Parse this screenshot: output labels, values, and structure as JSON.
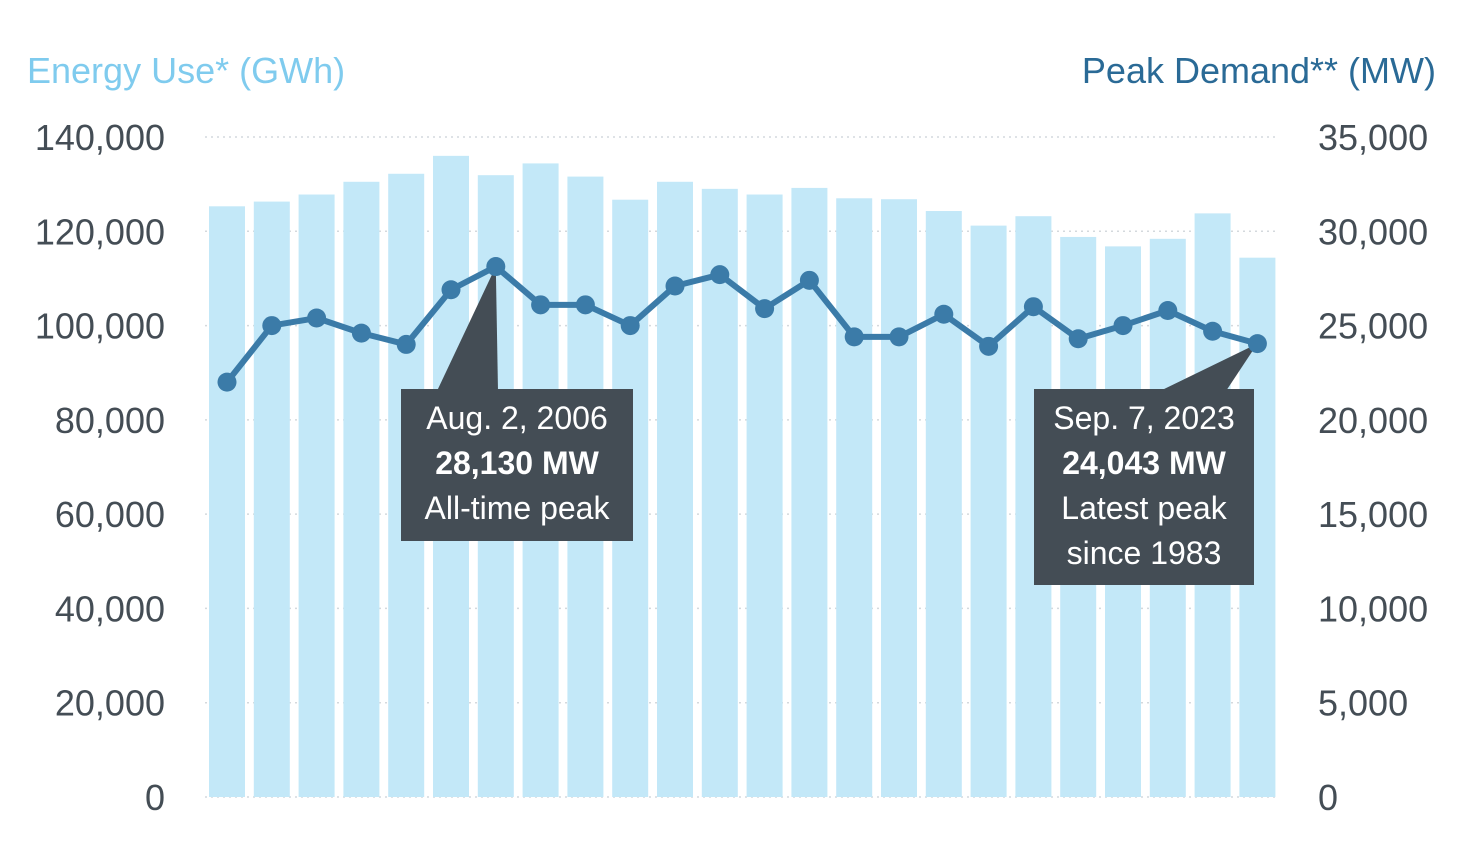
{
  "chart_data": {
    "type": "bar+line",
    "left_axis": {
      "label": "Energy Use* (GWh)",
      "ylim": [
        0,
        140000
      ],
      "ticks": [
        "140,000",
        "120,000",
        "100,000",
        "80,000",
        "60,000",
        "40,000",
        "20,000",
        "0"
      ],
      "tick_values": [
        140000,
        120000,
        100000,
        80000,
        60000,
        40000,
        20000,
        0
      ]
    },
    "right_axis": {
      "label": "Peak Demand** (MW)",
      "ylim": [
        0,
        35000
      ],
      "ticks": [
        "35,000",
        "30,000",
        "25,000",
        "20,000",
        "15,000",
        "10,000",
        "5,000",
        "0"
      ],
      "tick_values": [
        35000,
        30000,
        25000,
        20000,
        15000,
        10000,
        5000,
        0
      ]
    },
    "grid": true,
    "series": [
      {
        "axis": "left",
        "type": "bar",
        "values": [
          125300,
          126300,
          127800,
          130500,
          132200,
          136000,
          131900,
          134400,
          131600,
          126700,
          130500,
          129000,
          127800,
          129200,
          127000,
          126800,
          124300,
          121200,
          123200,
          118800,
          116800,
          118400,
          123800,
          114400
        ]
      },
      {
        "axis": "right",
        "type": "line",
        "values": [
          22000,
          25000,
          25400,
          24600,
          24000,
          26900,
          28130,
          26100,
          26100,
          25000,
          27100,
          27700,
          25900,
          27400,
          24400,
          24400,
          25600,
          23900,
          26000,
          24300,
          25000,
          25800,
          24700,
          24043
        ]
      }
    ],
    "annotations": [
      {
        "lines": [
          "Aug. 2, 2006",
          "28,130 MW",
          "All-time peak"
        ],
        "bold_line": 1,
        "points_to_index": 6
      },
      {
        "lines": [
          "Sep. 7, 2023",
          "24,043 MW",
          "Latest peak",
          "since 1983"
        ],
        "bold_line": 1,
        "points_to_index": 23
      }
    ]
  },
  "colors": {
    "bar": "#c3e8f8",
    "line": "#3b7ba8",
    "left_axis_title": "#7fcbee",
    "right_axis_title": "#2a6a96",
    "tick": "#444d55",
    "grid": "#d4d9dd",
    "callout_bg": "#444d55"
  }
}
